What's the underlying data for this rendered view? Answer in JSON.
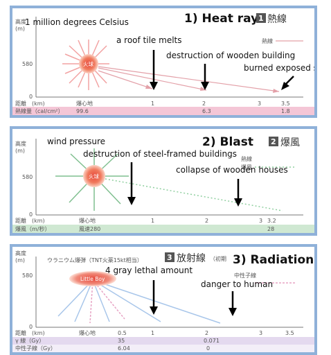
{
  "heat": {
    "axis_y": "高度",
    "axis_y_unit": "(m)",
    "y_tick_580": "580",
    "y_tick_0": "0",
    "axis_x": "距離　(km)",
    "hypocenter": "爆心地",
    "x1": "1",
    "x2": "2",
    "x3": "3",
    "x35": "3.5",
    "fireball": "火球",
    "legend": "熱線",
    "row_label": "熱線量（cal/cm²）",
    "row_v1": "99.6",
    "row_v2": "6.3",
    "row_v3": "1.8",
    "title_en": "1) Heat ray",
    "badge": "1",
    "title_jp": "熱線",
    "ann_temp": "1 million degrees Celsius",
    "ann_roof": "a roof tile melts",
    "ann_wood": "destruction of wooden building",
    "ann_skin": "burned exposed skin"
  },
  "blast": {
    "axis_y": "高度",
    "axis_y_unit": "(m)",
    "y_tick_580": "580",
    "y_tick_0": "0",
    "axis_x": "距離　(km)",
    "hypocenter": "爆心地",
    "x1": "1",
    "x2": "2",
    "x3": "3",
    "x32": "3.2",
    "fireball": "火球",
    "legend1": "熱線",
    "legend2": "爆風",
    "row_label": "爆風（m/秒）",
    "row_v1": "風速280",
    "row_v2": "28",
    "title_en": "2) Blast",
    "badge": "2",
    "title_jp": "爆風",
    "ann_pressure": "wind pressure",
    "ann_steel": "destruction of steel-framed buildings",
    "ann_houses": "collapse of wooden houses"
  },
  "radiation": {
    "axis_y": "高度",
    "axis_y_unit": "(m)",
    "y_tick_580": "580",
    "y_tick_0": "0",
    "axis_x": "距離　(km)",
    "hypocenter": "爆心地",
    "x05": "0.5",
    "x1": "1",
    "x2": "2",
    "x3": "3",
    "x35": "3.5",
    "bomb_note": "ウラニウム爆弾（TNT火薬15kt相当）",
    "bomb": "Little Boy",
    "badge": "3",
    "title_jp": "放射線",
    "title_jp_note": "（初期",
    "title_en": "3) Radiation",
    "legend": "中性子線",
    "row1_label": "γ 線（Gy）",
    "row1_v1": "35",
    "row1_v2": "0.071",
    "row2_label": "中性子線（Gy）",
    "row2_v1": "6.04",
    "row2_v2": "0",
    "ann_lethal": "4 gray lethal amount",
    "ann_danger": "danger to human"
  },
  "colors": {
    "frame": "#8fb1d9",
    "heat_row": "#f4c6d6",
    "blast_row": "#cfe8d2",
    "rad_row": "#e4d9ef",
    "fire": "#e84a3c"
  }
}
